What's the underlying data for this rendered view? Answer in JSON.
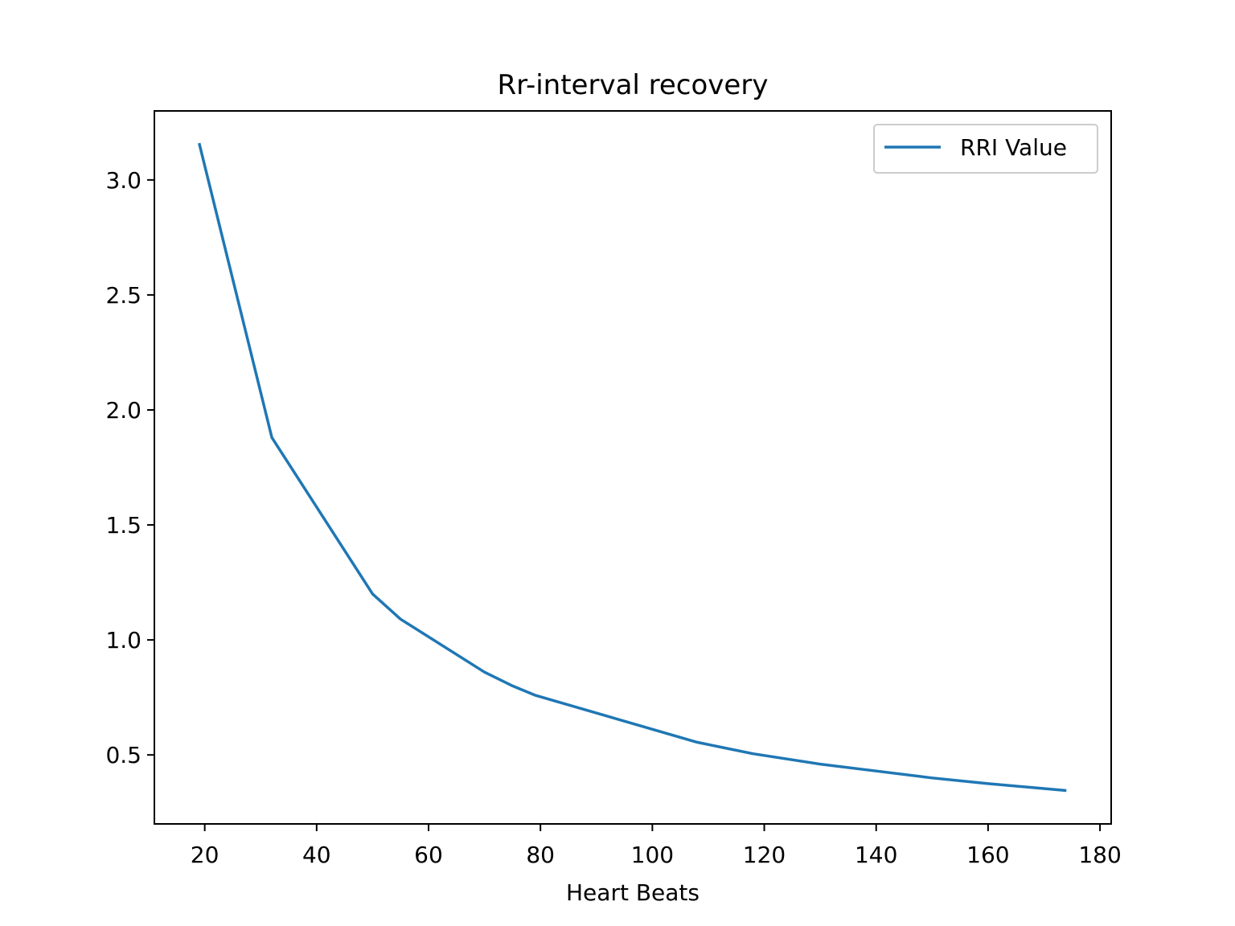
{
  "chart_data": {
    "type": "line",
    "title": "Rr-interval recovery",
    "xlabel": "Heart Beats",
    "ylabel": "",
    "xlim": [
      11,
      182
    ],
    "ylim": [
      0.2,
      3.3
    ],
    "xticks": [
      20,
      40,
      60,
      80,
      100,
      120,
      140,
      160,
      180
    ],
    "yticks": [
      0.5,
      1.0,
      1.5,
      2.0,
      2.5,
      3.0
    ],
    "xtick_labels": [
      "20",
      "40",
      "60",
      "80",
      "100",
      "120",
      "140",
      "160",
      "180"
    ],
    "ytick_labels": [
      "0.5",
      "1.0",
      "1.5",
      "2.0",
      "2.5",
      "3.0"
    ],
    "grid": false,
    "legend": {
      "placement": "top-right"
    },
    "series": [
      {
        "name": "RRI Value",
        "color": "#1f77b4",
        "x": [
          19,
          32,
          50,
          55,
          70,
          75,
          79,
          108,
          118,
          130,
          140,
          150,
          160,
          174
        ],
        "y": [
          3.16,
          1.88,
          1.2,
          1.09,
          0.86,
          0.8,
          0.76,
          0.555,
          0.505,
          0.46,
          0.43,
          0.4,
          0.375,
          0.345
        ]
      }
    ]
  }
}
